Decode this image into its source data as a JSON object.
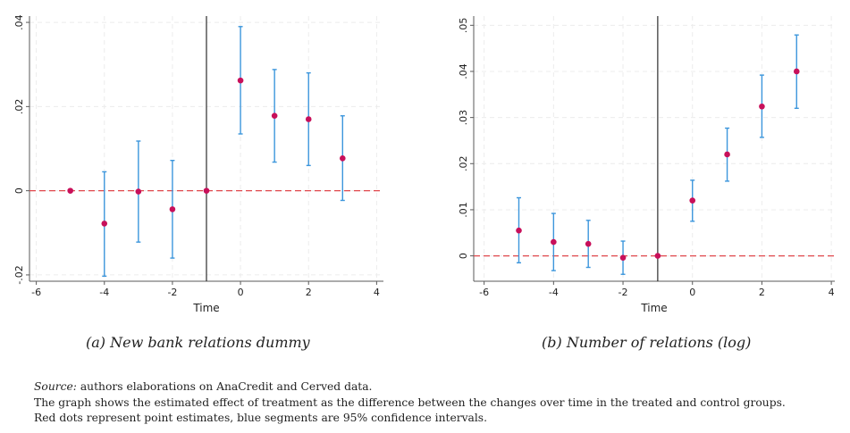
{
  "chart_data": [
    {
      "type": "scatter",
      "subtype": "event-study with confidence intervals",
      "title": "",
      "caption": "(a) New bank relations dummy",
      "xlabel": "Time",
      "ylabel": "",
      "xlim": [
        -6.2,
        4.2
      ],
      "ylim": [
        -0.0215,
        0.0415
      ],
      "xticks": [
        -6,
        -4,
        -2,
        0,
        2,
        4
      ],
      "xtick_labels": [
        "-6",
        "-4",
        "-2",
        "0",
        "2",
        "4"
      ],
      "yticks": [
        -0.02,
        0,
        0.02,
        0.04
      ],
      "ytick_labels": [
        "-.02",
        "0",
        ".02",
        ".04"
      ],
      "grid": true,
      "reference_lines": {
        "vertical_x": -1,
        "horizontal_y": 0
      },
      "points": [
        {
          "x": -5,
          "y": 0.0,
          "lo": 0.0,
          "hi": 0.0
        },
        {
          "x": -4,
          "y": -0.0078,
          "lo": -0.0203,
          "hi": 0.0045
        },
        {
          "x": -3,
          "y": -0.0002,
          "lo": -0.0122,
          "hi": 0.0118
        },
        {
          "x": -2,
          "y": -0.0044,
          "lo": -0.016,
          "hi": 0.0072
        },
        {
          "x": -1,
          "y": 0.0,
          "lo": 0.0,
          "hi": 0.0
        },
        {
          "x": 0,
          "y": 0.0262,
          "lo": 0.0135,
          "hi": 0.039
        },
        {
          "x": 1,
          "y": 0.0178,
          "lo": 0.0068,
          "hi": 0.0288
        },
        {
          "x": 2,
          "y": 0.017,
          "lo": 0.006,
          "hi": 0.028
        },
        {
          "x": 3,
          "y": 0.0077,
          "lo": -0.0023,
          "hi": 0.0178
        }
      ]
    },
    {
      "type": "scatter",
      "subtype": "event-study with confidence intervals",
      "title": "",
      "caption": "(b) Number of relations (log)",
      "xlabel": "Time",
      "ylabel": "",
      "xlim": [
        -6.3,
        4.1
      ],
      "ylim": [
        -0.0055,
        0.052
      ],
      "xticks": [
        -6,
        -4,
        -2,
        0,
        2,
        4
      ],
      "xtick_labels": [
        "-6",
        "-4",
        "-2",
        "0",
        "2",
        "4"
      ],
      "yticks": [
        0,
        0.01,
        0.02,
        0.03,
        0.04,
        0.05
      ],
      "ytick_labels": [
        "0",
        ".01",
        ".02",
        ".03",
        ".04",
        ".05"
      ],
      "grid": true,
      "reference_lines": {
        "vertical_x": -1,
        "horizontal_y": 0
      },
      "points": [
        {
          "x": -5,
          "y": 0.0055,
          "lo": -0.0015,
          "hi": 0.0126
        },
        {
          "x": -4,
          "y": 0.003,
          "lo": -0.0032,
          "hi": 0.0092
        },
        {
          "x": -3,
          "y": 0.0026,
          "lo": -0.0025,
          "hi": 0.0077
        },
        {
          "x": -2,
          "y": -0.0004,
          "lo": -0.004,
          "hi": 0.0032
        },
        {
          "x": -1,
          "y": 0.0,
          "lo": 0.0,
          "hi": 0.0
        },
        {
          "x": 0,
          "y": 0.012,
          "lo": 0.0075,
          "hi": 0.0164
        },
        {
          "x": 1,
          "y": 0.022,
          "lo": 0.0162,
          "hi": 0.0277
        },
        {
          "x": 2,
          "y": 0.0324,
          "lo": 0.0257,
          "hi": 0.0392
        },
        {
          "x": 3,
          "y": 0.04,
          "lo": 0.032,
          "hi": 0.0479
        }
      ]
    }
  ],
  "colors": {
    "point": "#c8105a",
    "ci": "#3c96dc",
    "zero_line": "#e0474c",
    "vline": "#1a1a1a",
    "grid": "#ececec",
    "axis": "#5a5a5a"
  },
  "notes": {
    "source_label": "Source:",
    "source_text": " authors elaborations on AnaCredit and Cerved data.",
    "line2": "The graph shows the estimated effect of treatment as the difference between the changes over time in the treated and control groups.",
    "line3": "Red dots represent point estimates, blue segments are 95% confidence intervals."
  }
}
